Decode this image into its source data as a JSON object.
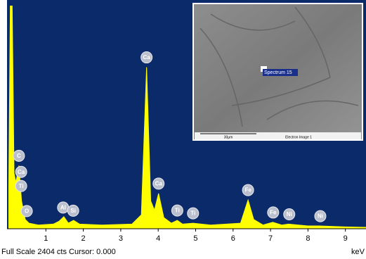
{
  "chart_data": {
    "type": "area",
    "x_label": "keV",
    "full_scale_label": "Full Scale",
    "counts_label": "cts Cursor:",
    "cursor": "0.000",
    "color": "#ffff00",
    "background": "#0b2a6a",
    "xlim": [
      0,
      9.55
    ],
    "ylim": [
      0,
      2404
    ],
    "xticks": [
      1,
      2,
      3,
      4,
      5,
      6,
      7,
      8,
      9
    ],
    "x": [
      0,
      0.05,
      0.1,
      0.15,
      0.2,
      0.28,
      0.35,
      0.45,
      0.55,
      0.8,
      1.2,
      1.35,
      1.48,
      1.6,
      1.74,
      1.9,
      2.5,
      3.3,
      3.55,
      3.69,
      3.8,
      3.9,
      4.01,
      4.15,
      4.35,
      4.51,
      4.65,
      4.93,
      5.4,
      6.2,
      6.4,
      6.55,
      6.8,
      7.06,
      7.3,
      7.48,
      8.0,
      8.3,
      9.0,
      9.55
    ],
    "values": [
      0,
      2404,
      2404,
      600,
      500,
      680,
      300,
      100,
      60,
      40,
      50,
      80,
      130,
      60,
      90,
      50,
      40,
      50,
      150,
      1740,
      300,
      200,
      380,
      120,
      60,
      90,
      50,
      60,
      40,
      60,
      310,
      100,
      40,
      70,
      40,
      50,
      30,
      30,
      20,
      15
    ],
    "peaks": [
      {
        "label": "Ti",
        "x": 0.34
      },
      {
        "label": "C",
        "x": 0.28
      },
      {
        "label": "Ca",
        "x": 0.34
      },
      {
        "label": "O",
        "x": 0.49
      },
      {
        "label": "Al",
        "x": 1.46
      },
      {
        "label": "Si",
        "x": 1.73
      },
      {
        "label": "Ca",
        "x": 3.69
      },
      {
        "label": "Ca",
        "x": 4.01
      },
      {
        "label": "Ti",
        "x": 4.51
      },
      {
        "label": "Ti",
        "x": 4.93
      },
      {
        "label": "Fe",
        "x": 6.4
      },
      {
        "label": "Fe",
        "x": 7.07
      },
      {
        "label": "Ni",
        "x": 7.5
      },
      {
        "label": "Ni",
        "x": 8.33
      }
    ],
    "inset": {
      "spectrum_label": "Spectrum 15",
      "scale_bar": "30µm",
      "caption": "Electron Image 1"
    }
  }
}
